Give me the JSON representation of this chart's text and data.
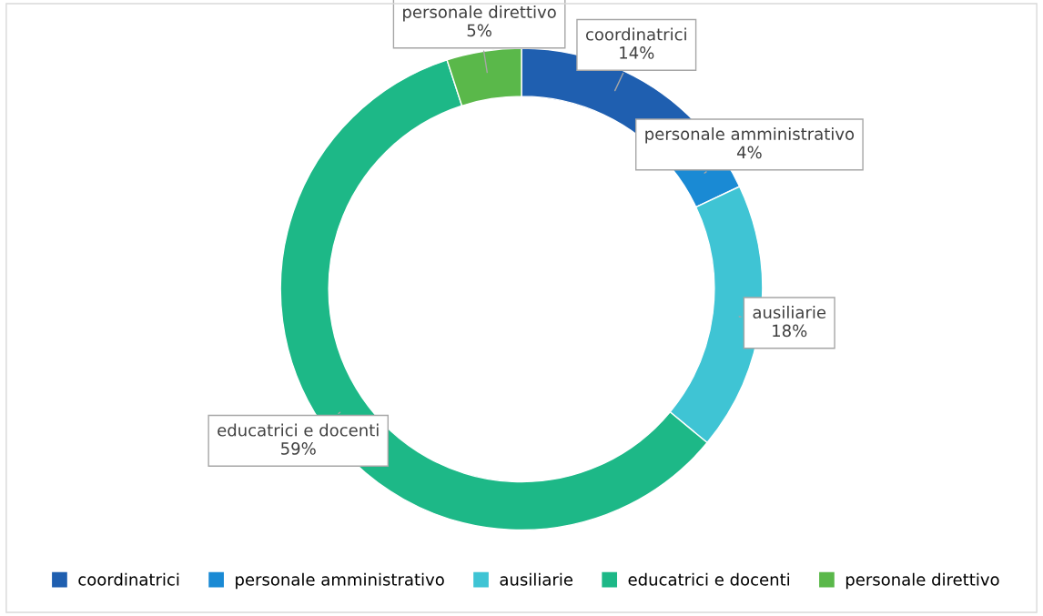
{
  "chart_data": {
    "type": "donut",
    "categories": [
      "coordinatrici",
      "personale amministrativo",
      "ausiliarie",
      "educatrici e docenti",
      "personale direttivo"
    ],
    "values": [
      14,
      4,
      18,
      59,
      5
    ],
    "colors": [
      "#1f5fb0",
      "#1a8ad4",
      "#3fc4d4",
      "#1db887",
      "#5ab84a"
    ],
    "value_labels": [
      "14%",
      "4%",
      "18%",
      "59%",
      "5%"
    ],
    "legend": "bottom"
  }
}
